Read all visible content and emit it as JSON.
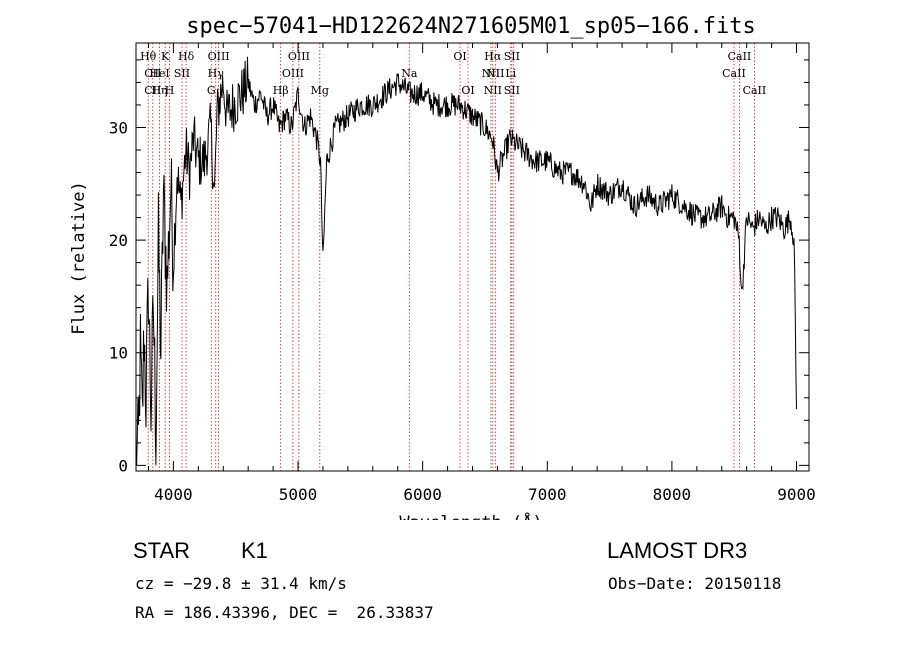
{
  "chart_data": {
    "type": "line",
    "title": "spec−57041−HD122624N271605M01_sp05−166.fits",
    "xlabel": "Wavelength (Å)",
    "ylabel": "Flux (relative)",
    "xlim": [
      3700,
      9100
    ],
    "ylim": [
      -0.5,
      37.5
    ],
    "xticks": [
      4000,
      5000,
      6000,
      7000,
      8000,
      9000
    ],
    "xtick_labels": [
      "4000",
      "5000",
      "6000",
      "7000",
      "8000",
      "9000"
    ],
    "yticks": [
      0,
      10,
      20,
      30
    ],
    "ytick_labels": [
      "0",
      "10",
      "20",
      "30"
    ],
    "series": [
      {
        "name": "flux",
        "x": [
          3700,
          3720,
          3735,
          3750,
          3765,
          3780,
          3800,
          3820,
          3840,
          3860,
          3880,
          3900,
          3920,
          3950,
          3980,
          4000,
          4030,
          4060,
          4100,
          4130,
          4160,
          4200,
          4250,
          4300,
          4330,
          4350,
          4380,
          4400,
          4430,
          4480,
          4550,
          4600,
          4650,
          4700,
          4750,
          4800,
          4850,
          4900,
          4950,
          5000,
          5050,
          5100,
          5150,
          5180,
          5200,
          5230,
          5300,
          5400,
          5500,
          5600,
          5700,
          5800,
          5900,
          6000,
          6100,
          6200,
          6300,
          6400,
          6500,
          6560,
          6600,
          6700,
          6800,
          6900,
          7000,
          7100,
          7200,
          7300,
          7350,
          7400,
          7500,
          7600,
          7700,
          7800,
          7900,
          8000,
          8100,
          8200,
          8300,
          8400,
          8450,
          8500,
          8540,
          8560,
          8600,
          8650,
          8700,
          8750,
          8800,
          8850,
          8900,
          8950,
          8980,
          9000
        ],
        "y": [
          0,
          2,
          10,
          4,
          12,
          6,
          16,
          5,
          14,
          3,
          20,
          10,
          24,
          16,
          25,
          18,
          26,
          23,
          28,
          26,
          29,
          27,
          27,
          30,
          24,
          31,
          33,
          34,
          31,
          32,
          33,
          34,
          32,
          33,
          31,
          32,
          30,
          31,
          30,
          33,
          30,
          31,
          29,
          27,
          18,
          27,
          30,
          31,
          32,
          32,
          33,
          34,
          33,
          33,
          32,
          32,
          32,
          31,
          30,
          29,
          26,
          29,
          28,
          27,
          27,
          26,
          26,
          25,
          23,
          25,
          24,
          25,
          23,
          24,
          23,
          24,
          23,
          22,
          22,
          23,
          22,
          22,
          20,
          15,
          22,
          21,
          22,
          21,
          22,
          22,
          21,
          22,
          20,
          5
        ]
      }
    ],
    "lines": [
      {
        "wave": 3798,
        "labels": [
          "Hθ",
          "",
          ""
        ]
      },
      {
        "wave": 3835,
        "labels": [
          "",
          "CII",
          "CII"
        ]
      },
      {
        "wave": 3889,
        "labels": [
          "",
          "HeI",
          "Hη"
        ]
      },
      {
        "wave": 3934,
        "labels": [
          "K",
          "",
          ""
        ]
      },
      {
        "wave": 3969,
        "labels": [
          "",
          "",
          "H"
        ]
      },
      {
        "wave": 4069,
        "labels": [
          "",
          "SII",
          ""
        ]
      },
      {
        "wave": 4102,
        "labels": [
          "Hδ",
          "",
          ""
        ]
      },
      {
        "wave": 4304,
        "labels": [
          "",
          "",
          "G"
        ]
      },
      {
        "wave": 4340,
        "labels": [
          "",
          "Hγ",
          ""
        ]
      },
      {
        "wave": 4363,
        "labels": [
          "OIII",
          "",
          ""
        ]
      },
      {
        "wave": 4861,
        "labels": [
          "",
          "",
          "Hβ"
        ]
      },
      {
        "wave": 4959,
        "labels": [
          "",
          "OIII",
          ""
        ]
      },
      {
        "wave": 5007,
        "labels": [
          "OIII",
          "",
          ""
        ]
      },
      {
        "wave": 5175,
        "labels": [
          "",
          "",
          "Mg"
        ]
      },
      {
        "wave": 5893,
        "labels": [
          "",
          "Na",
          ""
        ]
      },
      {
        "wave": 6300,
        "labels": [
          "OI",
          "",
          ""
        ]
      },
      {
        "wave": 6364,
        "labels": [
          "",
          "",
          "OI"
        ]
      },
      {
        "wave": 6548,
        "labels": [
          "",
          "NII",
          ""
        ]
      },
      {
        "wave": 6563,
        "labels": [
          "Hα",
          "",
          "NII"
        ]
      },
      {
        "wave": 6583,
        "labels": [
          "",
          "NII",
          ""
        ]
      },
      {
        "wave": 6707,
        "labels": [
          "",
          "Li",
          ""
        ]
      },
      {
        "wave": 6716,
        "labels": [
          "SII",
          "",
          "SII"
        ]
      },
      {
        "wave": 6731,
        "labels": [
          "",
          "",
          ""
        ]
      },
      {
        "wave": 8498,
        "labels": [
          "",
          "CaII",
          ""
        ]
      },
      {
        "wave": 8542,
        "labels": [
          "CaII",
          "",
          ""
        ]
      },
      {
        "wave": 8662,
        "labels": [
          "",
          "",
          "CaII"
        ]
      }
    ]
  },
  "info": {
    "object_class": "STAR",
    "subclass": "K1",
    "survey": "LAMOST DR3",
    "redshift": "cz = −29.8 ± 31.4 km/s",
    "obs_date": "Obs−Date: 20150118",
    "coords": "RA = 186.43396, DEC =  26.33837"
  }
}
